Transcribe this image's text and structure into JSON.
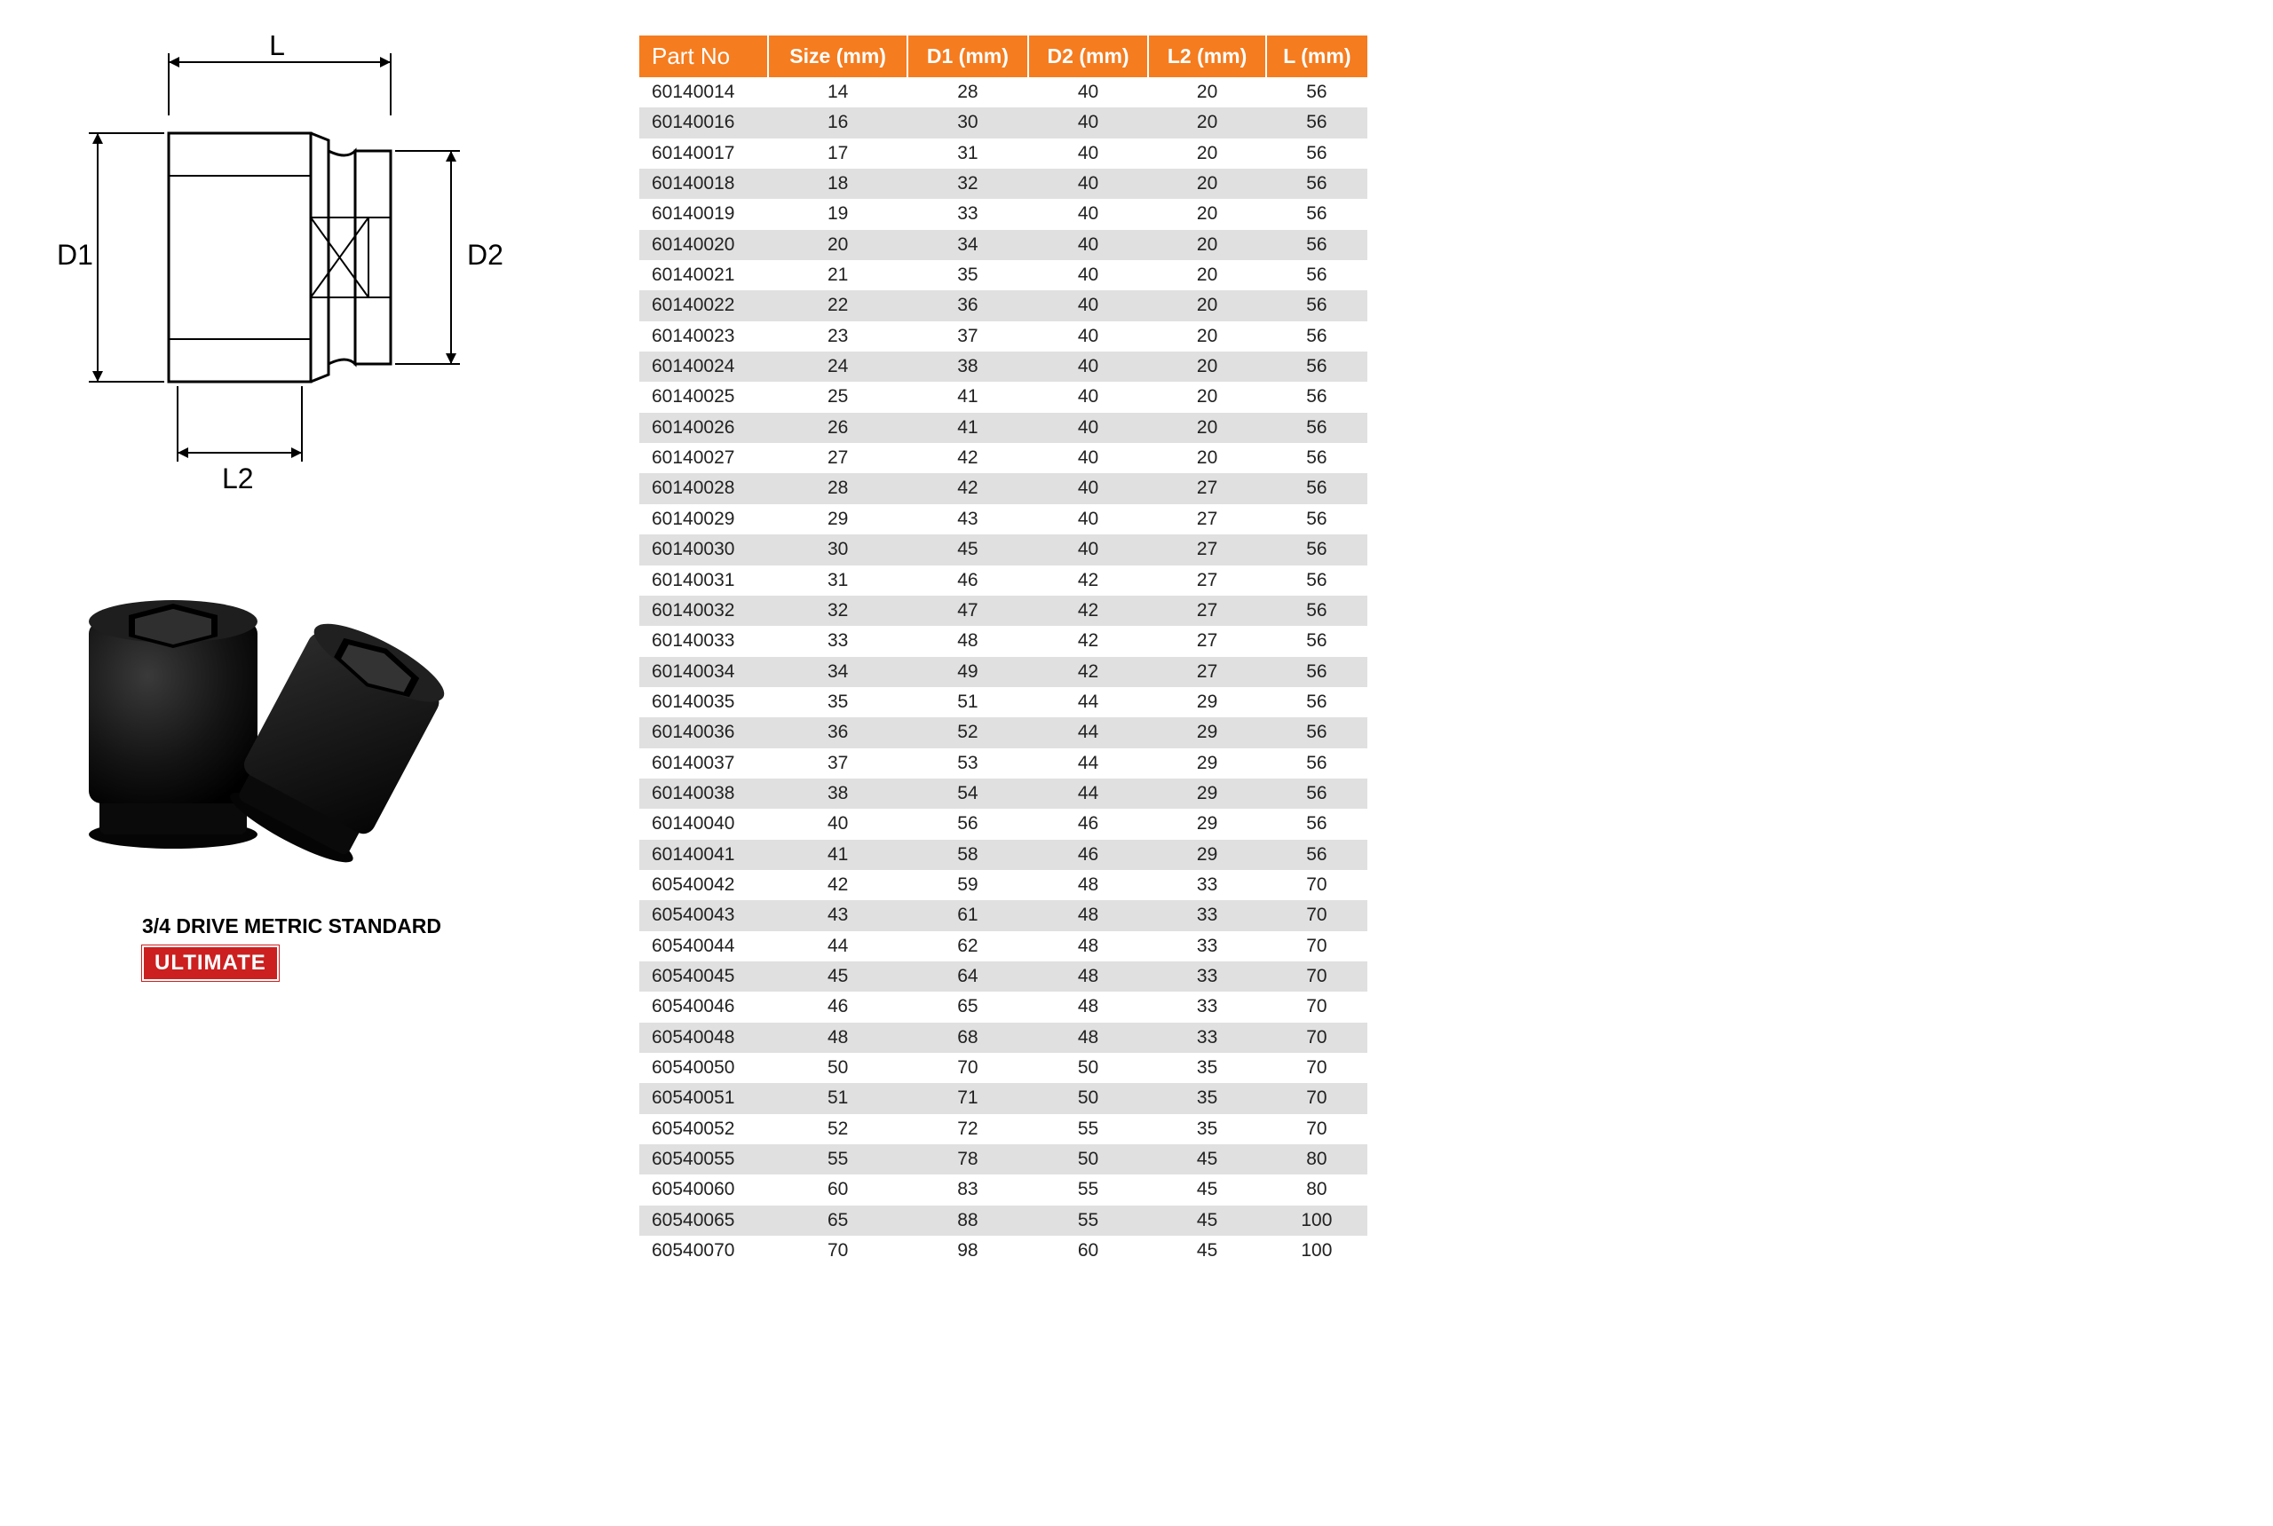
{
  "diagram": {
    "labels": {
      "L": "L",
      "D1": "D1",
      "D2": "D2",
      "L2": "L2"
    },
    "stroke": "#000000",
    "stroke_width": 2
  },
  "photo": {
    "fill": "#1a1a1a",
    "highlight": "#555555"
  },
  "caption": {
    "title": "3/4 DRIVE  METRIC STANDARD",
    "badge": "ULTIMATE",
    "badge_bg": "#cc1f1f",
    "badge_fg": "#ffffff"
  },
  "table": {
    "header_bg": "#f57c1f",
    "header_fg": "#ffffff",
    "row_alt_bg": "#e0e0e0",
    "columns": [
      "Part No",
      "Size (mm)",
      "D1 (mm)",
      "D2 (mm)",
      "L2 (mm)",
      "L (mm)"
    ],
    "rows": [
      [
        "60140014",
        "14",
        "28",
        "40",
        "20",
        "56"
      ],
      [
        "60140016",
        "16",
        "30",
        "40",
        "20",
        "56"
      ],
      [
        "60140017",
        "17",
        "31",
        "40",
        "20",
        "56"
      ],
      [
        "60140018",
        "18",
        "32",
        "40",
        "20",
        "56"
      ],
      [
        "60140019",
        "19",
        "33",
        "40",
        "20",
        "56"
      ],
      [
        "60140020",
        "20",
        "34",
        "40",
        "20",
        "56"
      ],
      [
        "60140021",
        "21",
        "35",
        "40",
        "20",
        "56"
      ],
      [
        "60140022",
        "22",
        "36",
        "40",
        "20",
        "56"
      ],
      [
        "60140023",
        "23",
        "37",
        "40",
        "20",
        "56"
      ],
      [
        "60140024",
        "24",
        "38",
        "40",
        "20",
        "56"
      ],
      [
        "60140025",
        "25",
        "41",
        "40",
        "20",
        "56"
      ],
      [
        "60140026",
        "26",
        "41",
        "40",
        "20",
        "56"
      ],
      [
        "60140027",
        "27",
        "42",
        "40",
        "20",
        "56"
      ],
      [
        "60140028",
        "28",
        "42",
        "40",
        "27",
        "56"
      ],
      [
        "60140029",
        "29",
        "43",
        "40",
        "27",
        "56"
      ],
      [
        "60140030",
        "30",
        "45",
        "40",
        "27",
        "56"
      ],
      [
        "60140031",
        "31",
        "46",
        "42",
        "27",
        "56"
      ],
      [
        "60140032",
        "32",
        "47",
        "42",
        "27",
        "56"
      ],
      [
        "60140033",
        "33",
        "48",
        "42",
        "27",
        "56"
      ],
      [
        "60140034",
        "34",
        "49",
        "42",
        "27",
        "56"
      ],
      [
        "60140035",
        "35",
        "51",
        "44",
        "29",
        "56"
      ],
      [
        "60140036",
        "36",
        "52",
        "44",
        "29",
        "56"
      ],
      [
        "60140037",
        "37",
        "53",
        "44",
        "29",
        "56"
      ],
      [
        "60140038",
        "38",
        "54",
        "44",
        "29",
        "56"
      ],
      [
        "60140040",
        "40",
        "56",
        "46",
        "29",
        "56"
      ],
      [
        "60140041",
        "41",
        "58",
        "46",
        "29",
        "56"
      ],
      [
        "60540042",
        "42",
        "59",
        "48",
        "33",
        "70"
      ],
      [
        "60540043",
        "43",
        "61",
        "48",
        "33",
        "70"
      ],
      [
        "60540044",
        "44",
        "62",
        "48",
        "33",
        "70"
      ],
      [
        "60540045",
        "45",
        "64",
        "48",
        "33",
        "70"
      ],
      [
        "60540046",
        "46",
        "65",
        "48",
        "33",
        "70"
      ],
      [
        "60540048",
        "48",
        "68",
        "48",
        "33",
        "70"
      ],
      [
        "60540050",
        "50",
        "70",
        "50",
        "35",
        "70"
      ],
      [
        "60540051",
        "51",
        "71",
        "50",
        "35",
        "70"
      ],
      [
        "60540052",
        "52",
        "72",
        "55",
        "35",
        "70"
      ],
      [
        "60540055",
        "55",
        "78",
        "50",
        "45",
        "80"
      ],
      [
        "60540060",
        "60",
        "83",
        "55",
        "45",
        "80"
      ],
      [
        "60540065",
        "65",
        "88",
        "55",
        "45",
        "100"
      ],
      [
        "60540070",
        "70",
        "98",
        "60",
        "45",
        "100"
      ]
    ]
  }
}
